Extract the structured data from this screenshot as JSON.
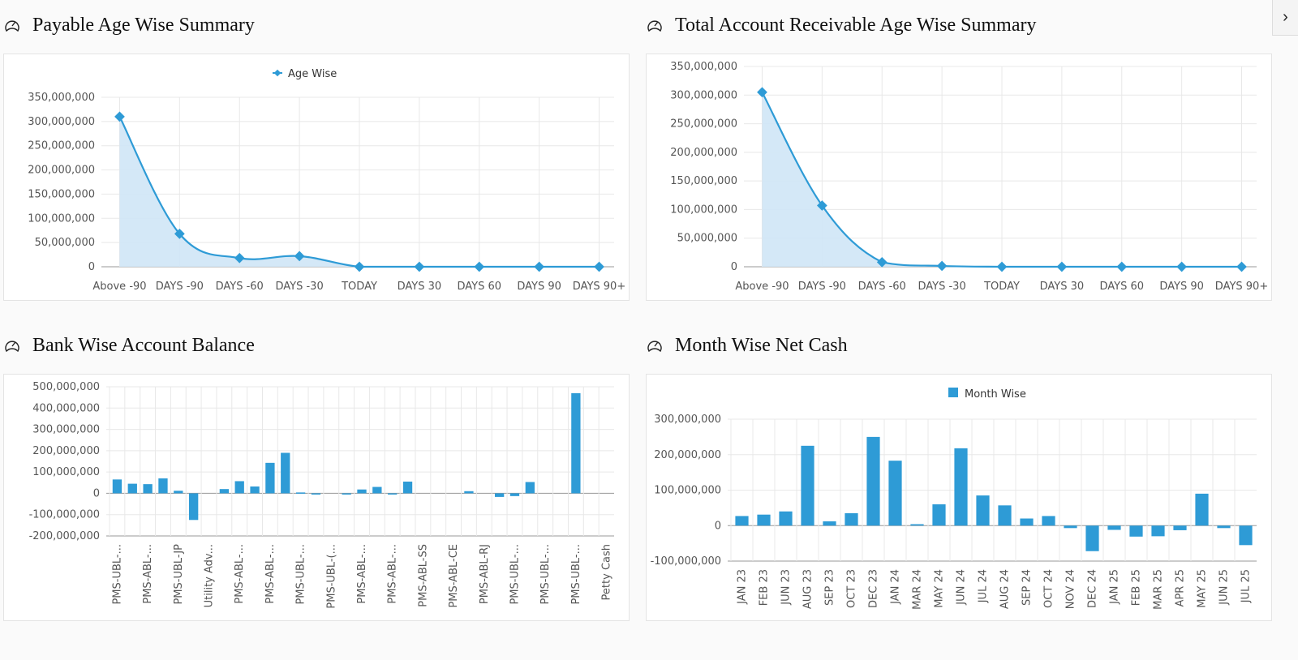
{
  "nav": {
    "next_icon": "chevron-right-icon",
    "next_label": "›"
  },
  "panels": {
    "payable": {
      "title": "Payable Age Wise Summary",
      "icon": "dashboard-gauge-icon"
    },
    "receivable": {
      "title": "Total Account Receivable Age Wise Summary",
      "icon": "dashboard-gauge-icon"
    },
    "bank": {
      "title": "Bank Wise Account Balance",
      "icon": "dashboard-gauge-icon"
    },
    "monthly": {
      "title": "Month Wise Net Cash",
      "icon": "dashboard-gauge-icon"
    }
  },
  "colors": {
    "series": "#2e9bd6",
    "area": "#cfe6f6"
  },
  "chart_data": [
    {
      "id": "payable",
      "type": "area",
      "title": "Payable Age Wise Summary",
      "legend": "Age Wise",
      "legend_position": "top-center",
      "categories": [
        "Above -90",
        "DAYS -90",
        "DAYS -60",
        "DAYS -30",
        "TODAY",
        "DAYS 30",
        "DAYS 60",
        "DAYS 90",
        "DAYS 90+"
      ],
      "values": [
        310000000,
        68000000,
        18000000,
        22000000,
        0,
        0,
        0,
        0,
        0
      ],
      "ylim": [
        0,
        350000000
      ],
      "yticks": [
        0,
        50000000,
        100000000,
        150000000,
        200000000,
        250000000,
        300000000,
        350000000
      ],
      "ytick_labels": [
        "0",
        "50,000,000",
        "100,000,000",
        "150,000,000",
        "200,000,000",
        "250,000,000",
        "300,000,000",
        "350,000,000"
      ],
      "grid": true
    },
    {
      "id": "receivable",
      "type": "area",
      "title": "Total Account Receivable Age Wise Summary",
      "legend": "",
      "categories": [
        "Above -90",
        "DAYS -90",
        "DAYS -60",
        "DAYS -30",
        "TODAY",
        "DAYS 30",
        "DAYS 60",
        "DAYS 90",
        "DAYS 90+"
      ],
      "values": [
        305000000,
        107000000,
        8000000,
        1500000,
        0,
        0,
        0,
        0,
        0
      ],
      "ylim": [
        0,
        350000000
      ],
      "yticks": [
        0,
        50000000,
        100000000,
        150000000,
        200000000,
        250000000,
        300000000,
        350000000
      ],
      "ytick_labels": [
        "0",
        "50,000,000",
        "100,000,000",
        "150,000,000",
        "200,000,000",
        "250,000,000",
        "300,000,000",
        "350,000,000"
      ],
      "grid": true
    },
    {
      "id": "bank",
      "type": "bar",
      "title": "Bank Wise Account Balance",
      "legend": "",
      "categories": [
        "PMS-UBL-...",
        "",
        "PMS-ABL-...",
        "",
        "PMS-UBL-JP",
        "",
        "Utility Adv...",
        "",
        "PMS-ABL-...",
        "",
        "PMS-ABL-...",
        "",
        "PMS-UBL-...",
        "",
        "PMS-UBL-(...",
        "",
        "PMS-ABL-...",
        "",
        "PMS-ABL-...",
        "",
        "PMS-ABL-SS",
        "",
        "PMS-ABL-CE",
        "",
        "PMS-ABL-RJ",
        "",
        "PMS-UBL-...",
        "",
        "PMS-UBL-...",
        "",
        "PMS-UBL-...",
        "",
        "Petty Cash"
      ],
      "values": [
        65000000,
        45000000,
        43000000,
        70000000,
        12000000,
        -125000000,
        0,
        20000000,
        57000000,
        32000000,
        143000000,
        190000000,
        4000000,
        -3000000,
        0,
        -3000000,
        18000000,
        30000000,
        -5000000,
        55000000,
        0,
        0,
        0,
        10000000,
        0,
        -17000000,
        -13000000,
        53000000,
        0,
        0,
        470000000,
        0,
        0
      ],
      "ylim": [
        -200000000,
        500000000
      ],
      "yticks": [
        -200000000,
        -100000000,
        0,
        100000000,
        200000000,
        300000000,
        400000000,
        500000000
      ],
      "ytick_labels": [
        "-200,000,000",
        "-100,000,000",
        "0",
        "100,000,000",
        "200,000,000",
        "300,000,000",
        "400,000,000",
        "500,000,000"
      ],
      "grid": true
    },
    {
      "id": "monthly",
      "type": "bar",
      "title": "Month Wise Net Cash",
      "legend": "Month Wise",
      "legend_position": "top-center",
      "categories": [
        "JAN 23",
        "FEB 23",
        "JUN 23",
        "AUG 23",
        "SEP 23",
        "OCT 23",
        "DEC 23",
        "JAN 24",
        "MAR 24",
        "MAY 24",
        "JUN 24",
        "JUL 24",
        "AUG 24",
        "SEP 24",
        "OCT 24",
        "NOV 24",
        "DEC 24",
        "JAN 25",
        "FEB 25",
        "MAR 25",
        "APR 25",
        "MAY 25",
        "JUN 25",
        "JUL 25"
      ],
      "values": [
        27000000,
        31000000,
        40000000,
        225000000,
        12000000,
        35000000,
        250000000,
        183000000,
        4000000,
        60000000,
        218000000,
        85000000,
        57000000,
        20000000,
        27000000,
        -7000000,
        -72000000,
        -12000000,
        -31000000,
        -30000000,
        -13000000,
        90000000,
        -7000000,
        -55000000
      ],
      "ylim": [
        -100000000,
        300000000
      ],
      "yticks": [
        -100000000,
        0,
        100000000,
        200000000,
        300000000
      ],
      "ytick_labels": [
        "-100,000,000",
        "0",
        "100,000,000",
        "200,000,000",
        "300,000,000"
      ],
      "grid": true
    }
  ]
}
